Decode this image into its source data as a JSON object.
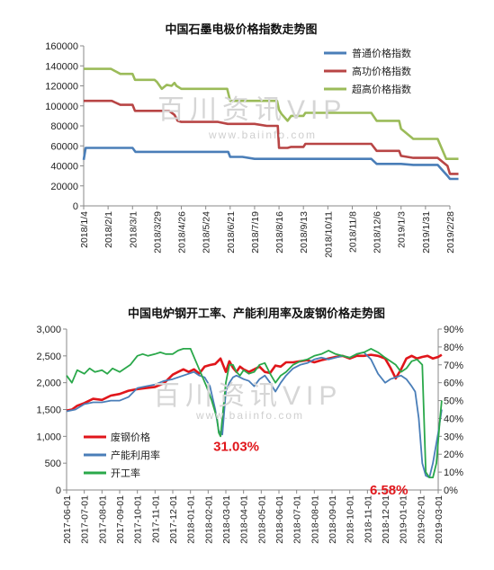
{
  "chart_data": [
    {
      "type": "line",
      "title": "中国石墨电极价格指数走势图",
      "categories": [
        "2018/1/4",
        "2018/2/1",
        "2018/3/1",
        "2018/3/29",
        "2018/4/26",
        "2018/5/24",
        "2018/6/21",
        "2018/7/19",
        "2018/8/16",
        "2018/9/13",
        "2018/10/11",
        "2018/11/8",
        "2018/12/6",
        "2019/1/3",
        "2019/1/31",
        "2019/2/28"
      ],
      "ylim": [
        0,
        160000
      ],
      "yticks": [
        "0",
        "20000",
        "40000",
        "60000",
        "80000",
        "100000",
        "120000",
        "140000",
        "160000"
      ],
      "legend_position": "top-right",
      "series": [
        {
          "name": "普通价格指数",
          "color": "#4a7eb8",
          "x": [
            0,
            0.08,
            0.5,
            1,
            1.15,
            1.5,
            2,
            2.12,
            2.5,
            3,
            3.5,
            4,
            4.5,
            5,
            5.5,
            5.92,
            6,
            6.5,
            7,
            7.5,
            8,
            8.5,
            9,
            9.5,
            10,
            10.5,
            11,
            11.5,
            11.78,
            12,
            12.5,
            12.92,
            13,
            13.5,
            14,
            14.32,
            14.5,
            14.9,
            15,
            15.35
          ],
          "values": [
            46000,
            58000,
            58000,
            58000,
            58000,
            58000,
            58000,
            54000,
            54000,
            54000,
            54000,
            54000,
            54000,
            54000,
            54000,
            54000,
            49000,
            49000,
            47000,
            47000,
            47000,
            47000,
            47000,
            47000,
            47000,
            47000,
            47000,
            47000,
            47000,
            42000,
            42000,
            42000,
            42000,
            41000,
            41000,
            41000,
            41000,
            30000,
            27000,
            27000
          ]
        },
        {
          "name": "高功价格指数",
          "color": "#b84545",
          "x": [
            0,
            0.5,
            1,
            1.15,
            1.5,
            2,
            2.1,
            2.5,
            3,
            3.5,
            3.72,
            3.85,
            4,
            4.5,
            5,
            5.5,
            5.9,
            6,
            6.5,
            7,
            7.5,
            7.95,
            8,
            8.35,
            8.5,
            9,
            9.08,
            9.5,
            10,
            10.5,
            11,
            11.5,
            11.78,
            12,
            12.5,
            12.92,
            13,
            13.5,
            14,
            14.32,
            14.5,
            14.9,
            15,
            15.35
          ],
          "values": [
            105000,
            105000,
            105000,
            105000,
            101000,
            101000,
            95000,
            95000,
            95000,
            95000,
            91000,
            85000,
            84000,
            84000,
            84000,
            84000,
            82000,
            82000,
            82000,
            82000,
            80000,
            80000,
            58000,
            58000,
            59000,
            59000,
            62000,
            62000,
            62000,
            62000,
            62000,
            62000,
            62000,
            55000,
            55000,
            55000,
            50000,
            48000,
            48000,
            48000,
            48000,
            40000,
            32000,
            32000
          ]
        },
        {
          "name": "超高价格指数",
          "color": "#9bbb59",
          "x": [
            0,
            0.5,
            1,
            1.12,
            1.5,
            2,
            2.1,
            2.5,
            2.9,
            3,
            3.2,
            3.4,
            3.6,
            3.72,
            3.8,
            4,
            4.5,
            5,
            5.5,
            5.88,
            6,
            6.5,
            7,
            7.5,
            7.92,
            8,
            8.1,
            8.35,
            8.5,
            9,
            9.08,
            9.5,
            10,
            10.5,
            11,
            11.5,
            11.78,
            12,
            12.5,
            12.92,
            13,
            13.5,
            14,
            14.32,
            14.5,
            14.85,
            15,
            15.35
          ],
          "values": [
            137000,
            137000,
            137000,
            137000,
            132000,
            132000,
            126000,
            126000,
            126000,
            124000,
            117000,
            121000,
            120000,
            123000,
            120000,
            117000,
            117000,
            117000,
            117000,
            117000,
            105000,
            105000,
            105000,
            105000,
            105000,
            96000,
            92000,
            85000,
            90000,
            90000,
            93000,
            93000,
            93000,
            93000,
            93000,
            93000,
            93000,
            85000,
            85000,
            85000,
            77000,
            67000,
            67000,
            67000,
            67000,
            47000,
            47000,
            47000
          ]
        }
      ]
    },
    {
      "type": "line",
      "title": "中国电炉钢开工率、产能利用率及废钢价格走势图",
      "categories": [
        "2017-06-01",
        "2017-07-01",
        "2017-08-01",
        "2017-09-01",
        "2017-10-01",
        "2017-11-01",
        "2017-12-01",
        "2018-01-01",
        "2018-02-01",
        "2018-03-01",
        "2018-04-01",
        "2018-05-01",
        "2018-06-01",
        "2018-07-01",
        "2018-08-01",
        "2018-09-01",
        "2018-10-01",
        "2018-11-01",
        "2018-12-01",
        "2019-01-01",
        "2019-02-01",
        "2019-03-01"
      ],
      "ylim_left": [
        0,
        3000
      ],
      "ylim_right": [
        0,
        0.9
      ],
      "yticks_left": [
        "0",
        "500",
        "1,000",
        "1,500",
        "2,000",
        "2,500",
        "3,000"
      ],
      "yticks_right": [
        "0%",
        "10%",
        "20%",
        "30%",
        "40%",
        "50%",
        "60%",
        "70%",
        "80%",
        "90%"
      ],
      "legend_position": "bottom-left",
      "annotations": [
        {
          "text": "31.03%",
          "x": 8.6,
          "y": 0.3103,
          "axis": "right"
        },
        {
          "text": "6.58%",
          "x": 19.5,
          "y": 0.0658,
          "axis": "right"
        }
      ],
      "series": [
        {
          "name": "废钢价格",
          "color": "#e0161b",
          "axis": "left",
          "x": [
            0,
            0.3,
            0.6,
            1,
            1.5,
            2,
            2.5,
            3,
            3.5,
            4,
            4.5,
            5,
            5.5,
            6,
            6.3,
            6.6,
            6.9,
            7.2,
            7.5,
            7.8,
            8.1,
            8.4,
            8.7,
            9,
            9.2,
            9.4,
            9.6,
            9.8,
            10,
            10.3,
            10.6,
            10.9,
            11.2,
            11.5,
            11.8,
            12.1,
            12.4,
            12.8,
            13.2,
            13.6,
            14,
            14.4,
            14.8,
            15.2,
            15.6,
            16,
            16.4,
            16.8,
            17.2,
            17.6,
            18,
            18.3,
            18.6,
            18.9,
            19.2,
            19.5,
            19.8,
            20.1,
            20.4,
            20.7,
            21,
            21.2
          ],
          "values": [
            1480,
            1500,
            1570,
            1620,
            1700,
            1680,
            1760,
            1790,
            1850,
            1880,
            1900,
            1920,
            1990,
            2150,
            2200,
            2250,
            2200,
            2250,
            2170,
            2300,
            2330,
            2350,
            2450,
            2200,
            2400,
            2280,
            2200,
            2300,
            2250,
            2200,
            2250,
            2300,
            2200,
            2180,
            2320,
            2300,
            2380,
            2380,
            2400,
            2420,
            2380,
            2420,
            2450,
            2480,
            2500,
            2450,
            2500,
            2500,
            2520,
            2500,
            2450,
            2280,
            2080,
            2250,
            2450,
            2500,
            2450,
            2480,
            2500,
            2450,
            2480,
            2520
          ]
        },
        {
          "name": "产能利用率",
          "color": "#4a7eb8",
          "axis": "right",
          "x": [
            0,
            0.5,
            1,
            1.5,
            2,
            2.5,
            3,
            3.5,
            4,
            4.5,
            5,
            5.5,
            6,
            6.3,
            6.6,
            6.9,
            7.2,
            7.5,
            7.8,
            8.1,
            8.4,
            8.6,
            8.8,
            9,
            9.2,
            9.4,
            9.6,
            9.8,
            10,
            10.3,
            10.6,
            10.9,
            11.2,
            11.5,
            11.8,
            12.1,
            12.4,
            12.8,
            13.2,
            13.6,
            14,
            14.4,
            14.8,
            15.2,
            15.6,
            16,
            16.4,
            16.8,
            17.2,
            17.6,
            18,
            18.3,
            18.6,
            18.9,
            19.2,
            19.5,
            19.7,
            19.9,
            20.1,
            20.3,
            20.5,
            20.7,
            21,
            21.2
          ],
          "values": [
            0.44,
            0.45,
            0.48,
            0.49,
            0.49,
            0.5,
            0.5,
            0.52,
            0.57,
            0.58,
            0.59,
            0.61,
            0.62,
            0.63,
            0.64,
            0.65,
            0.66,
            0.64,
            0.63,
            0.58,
            0.45,
            0.33,
            0.31,
            0.55,
            0.6,
            0.63,
            0.64,
            0.63,
            0.62,
            0.61,
            0.58,
            0.62,
            0.64,
            0.6,
            0.55,
            0.6,
            0.64,
            0.68,
            0.7,
            0.71,
            0.73,
            0.74,
            0.73,
            0.74,
            0.75,
            0.74,
            0.76,
            0.77,
            0.73,
            0.65,
            0.6,
            0.62,
            0.63,
            0.64,
            0.62,
            0.58,
            0.55,
            0.4,
            0.15,
            0.08,
            0.07,
            0.15,
            0.32,
            0.45
          ]
        },
        {
          "name": "开工率",
          "color": "#2aa84a",
          "axis": "right",
          "x": [
            0,
            0.3,
            0.6,
            1,
            1.3,
            1.6,
            2,
            2.3,
            2.6,
            3,
            3.3,
            3.6,
            4,
            4.3,
            4.6,
            5,
            5.3,
            5.6,
            6,
            6.3,
            6.6,
            7,
            7.3,
            7.6,
            7.9,
            8.2,
            8.5,
            8.6,
            8.7,
            9,
            9.2,
            9.4,
            9.6,
            9.8,
            10,
            10.3,
            10.6,
            10.9,
            11.2,
            11.5,
            11.8,
            12.1,
            12.4,
            12.8,
            13.2,
            13.6,
            14,
            14.4,
            14.8,
            15.2,
            15.6,
            16,
            16.4,
            16.8,
            17.2,
            17.6,
            18,
            18.3,
            18.6,
            18.9,
            19.2,
            19.5,
            19.8,
            20.1,
            20.3,
            20.5,
            20.7,
            20.9,
            21.1,
            21.2
          ],
          "values": [
            0.64,
            0.6,
            0.67,
            0.65,
            0.68,
            0.66,
            0.67,
            0.65,
            0.68,
            0.66,
            0.68,
            0.7,
            0.75,
            0.76,
            0.75,
            0.76,
            0.77,
            0.76,
            0.76,
            0.78,
            0.79,
            0.79,
            0.72,
            0.65,
            0.58,
            0.5,
            0.4,
            0.32,
            0.3,
            0.6,
            0.7,
            0.7,
            0.66,
            0.64,
            0.67,
            0.65,
            0.66,
            0.7,
            0.71,
            0.65,
            0.6,
            0.64,
            0.66,
            0.7,
            0.72,
            0.73,
            0.75,
            0.76,
            0.78,
            0.76,
            0.75,
            0.74,
            0.76,
            0.77,
            0.79,
            0.77,
            0.74,
            0.72,
            0.7,
            0.66,
            0.68,
            0.72,
            0.73,
            0.7,
            0.1,
            0.07,
            0.07,
            0.15,
            0.4,
            0.5
          ]
        }
      ]
    }
  ],
  "watermark": {
    "main": "百川资讯VIP",
    "sub": "www.baiinfo.com"
  }
}
